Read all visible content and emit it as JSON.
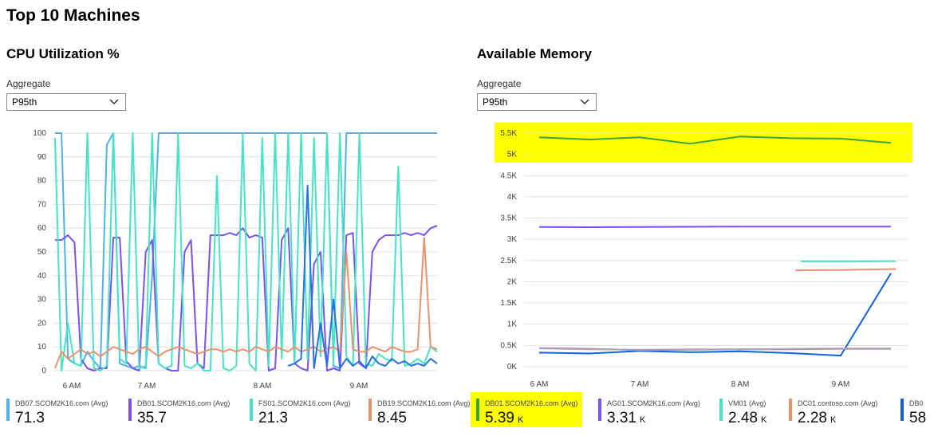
{
  "page": {
    "title": "Top 10 Machines"
  },
  "cpu": {
    "title": "CPU Utilization %",
    "aggregate_label": "Aggregate",
    "aggregate_value": "P95th",
    "chart_data": {
      "type": "line",
      "y_ticks": [
        "100",
        "90",
        "80",
        "70",
        "60",
        "50",
        "40",
        "30",
        "20",
        "10",
        "0"
      ],
      "ylim": [
        0,
        100
      ],
      "x_ticks": [
        "6 AM",
        "7 AM",
        "8 AM",
        "9 AM"
      ],
      "grid": true,
      "series": [
        {
          "name": "DB07.SCOM2K16.com (Avg)",
          "color": "#4fb0ea",
          "values": [
            100,
            100,
            5,
            3,
            2,
            8,
            4,
            1,
            95,
            100,
            3,
            2,
            1,
            2,
            1,
            40,
            100,
            100,
            100,
            100,
            100,
            100,
            100,
            100,
            100,
            100,
            100,
            100,
            100,
            100,
            100,
            100,
            100,
            100,
            100,
            100,
            100,
            100,
            100,
            100,
            100,
            100,
            100,
            2,
            1,
            100,
            100,
            100,
            100,
            100,
            100,
            100,
            100,
            100,
            100,
            100,
            100,
            100,
            100,
            100
          ]
        },
        {
          "name": "DB01.SCOM2K16.com (Avg)",
          "color": "#7b52ee",
          "values": [
            55,
            55,
            57,
            54,
            5,
            1,
            0,
            1,
            1,
            56,
            56,
            4,
            1,
            0,
            50,
            55,
            3,
            1,
            0,
            0,
            50,
            55,
            3,
            1,
            57,
            57,
            57,
            58,
            57,
            60,
            56,
            57,
            56,
            0,
            1,
            55,
            60,
            3,
            1,
            0,
            45,
            50,
            0,
            1,
            0,
            57,
            58,
            3,
            1,
            50,
            55,
            57,
            57,
            57,
            58,
            57,
            58,
            57,
            60,
            61
          ]
        },
        {
          "name": "FS01.SCOM2K16.com (Avg)",
          "color": "#46e3c4",
          "values": [
            98,
            0,
            20,
            3,
            2,
            100,
            1,
            0,
            2,
            100,
            5,
            3,
            100,
            1,
            2,
            100,
            3,
            1,
            2,
            100,
            2,
            1,
            3,
            0,
            0,
            82,
            1,
            0,
            2,
            100,
            3,
            0,
            98,
            2,
            100,
            5,
            100,
            3,
            100,
            5,
            98,
            6,
            100,
            3,
            100,
            6,
            2,
            100,
            3,
            2,
            7,
            5,
            4,
            86,
            2,
            3,
            5,
            3,
            10,
            8
          ]
        },
        {
          "name": "DB19.SCOM2K16.com (Avg)",
          "color": "#e8926e",
          "values": [
            1,
            8,
            5,
            7,
            9,
            7,
            8,
            6,
            8,
            10,
            9,
            8,
            7,
            9,
            10,
            8,
            6,
            8,
            9,
            10,
            9,
            8,
            7,
            8,
            9,
            9,
            8,
            9,
            8,
            9,
            8,
            10,
            9,
            8,
            10,
            9,
            8,
            10,
            8,
            9,
            10,
            8,
            9,
            10,
            8,
            50,
            9,
            8,
            8,
            10,
            9,
            8,
            10,
            9,
            8,
            8,
            9,
            56,
            10,
            9
          ]
        },
        {
          "name": "",
          "color": "#2b6fe0",
          "values": [
            null,
            null,
            null,
            null,
            null,
            null,
            null,
            null,
            null,
            null,
            null,
            null,
            null,
            null,
            null,
            null,
            null,
            null,
            null,
            null,
            null,
            null,
            null,
            null,
            null,
            null,
            null,
            null,
            null,
            null,
            null,
            null,
            null,
            null,
            null,
            null,
            2,
            3,
            5,
            78,
            1,
            20,
            2,
            30,
            1,
            5,
            2,
            4,
            1,
            6,
            3,
            2,
            5,
            3,
            4,
            2,
            3,
            2,
            5,
            3
          ]
        }
      ]
    },
    "legend": [
      {
        "name": "DB07.SCOM2K16.com (Avg)",
        "value": "71.3",
        "unit": "",
        "color": "#4fb0ea"
      },
      {
        "name": "DB01.SCOM2K16.com (Avg)",
        "value": "35.7",
        "unit": "",
        "color": "#7b52ee"
      },
      {
        "name": "FS01.SCOM2K16.com (Avg)",
        "value": "21.3",
        "unit": "",
        "color": "#46e3c4"
      },
      {
        "name": "DB19.SCOM2K16.com (Avg)",
        "value": "8.45",
        "unit": "",
        "color": "#e8926e"
      }
    ]
  },
  "memory": {
    "title": "Available Memory",
    "aggregate_label": "Aggregate",
    "aggregate_value": "P95th",
    "chart_data": {
      "type": "line",
      "y_ticks": [
        "5.5K",
        "5K",
        "4.5K",
        "4K",
        "3.5K",
        "3K",
        "2.5K",
        "2K",
        "1.5K",
        "1K",
        "0.5K",
        "0K"
      ],
      "ylim": [
        0,
        5500
      ],
      "x_ticks": [
        "6 AM",
        "7 AM",
        "8 AM",
        "9 AM"
      ],
      "grid": true,
      "series": [
        {
          "name": "DB01.SCOM2K16.com (Avg)",
          "color": "#3aa63a",
          "x": [
            0,
            0.5,
            1,
            1.5,
            2,
            2.5,
            3,
            3.5
          ],
          "values": [
            5400,
            5350,
            5400,
            5250,
            5420,
            5380,
            5370,
            5270
          ]
        },
        {
          "name": "AG01.SCOM2K16.com (Avg)",
          "color": "#7b52ee",
          "x": [
            0,
            0.5,
            1,
            1.5,
            2,
            2.5,
            3,
            3.5
          ],
          "values": [
            3290,
            3285,
            3290,
            3295,
            3300,
            3300,
            3300,
            3300
          ]
        },
        {
          "name": "VM01 (Avg)",
          "color": "#46e3c4",
          "x": [
            2.6,
            3,
            3.55
          ],
          "values": [
            2480,
            2480,
            2485
          ]
        },
        {
          "name": "DC01.contoso.com (Avg)",
          "color": "#e8926e",
          "x": [
            2.55,
            3,
            3.55
          ],
          "values": [
            2270,
            2275,
            2300
          ]
        },
        {
          "name": "",
          "color": "#1462d9",
          "x": [
            0,
            0.5,
            1,
            1.5,
            2,
            2.5,
            3,
            3.5
          ],
          "values": [
            330,
            310,
            370,
            340,
            360,
            320,
            260,
            2200
          ]
        },
        {
          "name": "",
          "color": "#b865e0",
          "x": [
            0,
            0.5,
            1,
            1.5,
            2,
            2.5,
            3,
            3.5
          ],
          "values": [
            440,
            420,
            390,
            400,
            410,
            410,
            420,
            420
          ]
        },
        {
          "name": "",
          "color": "#a9a9a9",
          "x": [
            0,
            0.5,
            1,
            1.5,
            2,
            2.5,
            3,
            3.5
          ],
          "values": [
            430,
            410,
            400,
            410,
            410,
            420,
            430,
            430
          ]
        }
      ]
    },
    "legend": [
      {
        "name": "DB01.SCOM2K16.com (Avg)",
        "value": "5.39",
        "unit": "K",
        "color": "#3aa63a"
      },
      {
        "name": "AG01.SCOM2K16.com (Avg)",
        "value": "3.31",
        "unit": "K",
        "color": "#7b52ee"
      },
      {
        "name": "VM01 (Avg)",
        "value": "2.48",
        "unit": "K",
        "color": "#46e3c4"
      },
      {
        "name": "DC01.contoso.com (Avg)",
        "value": "2.28",
        "unit": "K",
        "color": "#e8926e"
      },
      {
        "name": "DB0",
        "value": "58",
        "unit": "",
        "color": "#1462d9"
      }
    ]
  }
}
